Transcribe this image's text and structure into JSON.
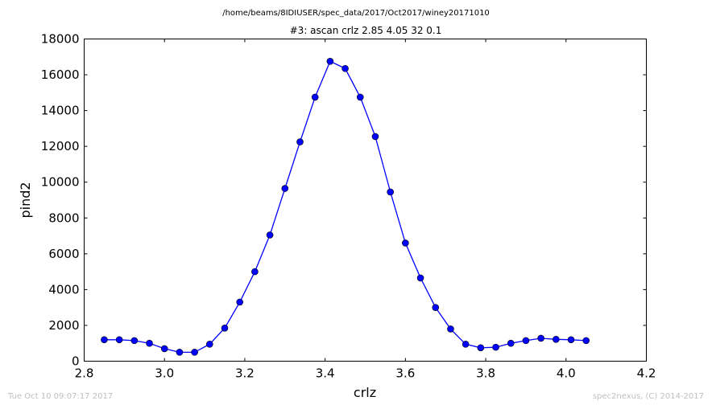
{
  "header": {
    "path": "/home/beams/8IDIUSER/spec_data/2017/Oct2017/winey20171010"
  },
  "footer": {
    "timestamp": "Tue Oct 10 09:07:17 2017",
    "credit": "spec2nexus, (C) 2014-2017"
  },
  "chart_data": {
    "type": "line",
    "title": "#3: ascan  crlz 2.85 4.05  32 0.1",
    "xlabel": "crlz",
    "ylabel": "pind2",
    "xlim": [
      2.8,
      4.2
    ],
    "ylim": [
      0,
      18000
    ],
    "xticks": [
      2.8,
      3.0,
      3.2,
      3.4,
      3.6,
      3.8,
      4.0,
      4.2
    ],
    "xtick_labels": [
      "2.8",
      "3.0",
      "3.2",
      "3.4",
      "3.6",
      "3.8",
      "4.0",
      "4.2"
    ],
    "yticks": [
      0,
      2000,
      4000,
      6000,
      8000,
      10000,
      12000,
      14000,
      16000,
      18000
    ],
    "ytick_labels": [
      "0",
      "2000",
      "4000",
      "6000",
      "8000",
      "10000",
      "12000",
      "14000",
      "16000",
      "18000"
    ],
    "grid": false,
    "marker": "circle",
    "series_color": "#0000ff",
    "x": [
      2.85,
      2.8875,
      2.925,
      2.9625,
      3.0,
      3.0375,
      3.075,
      3.1125,
      3.15,
      3.1875,
      3.225,
      3.2625,
      3.3,
      3.3375,
      3.375,
      3.4125,
      3.45,
      3.4875,
      3.525,
      3.5625,
      3.6,
      3.6375,
      3.675,
      3.7125,
      3.75,
      3.7875,
      3.825,
      3.8625,
      3.9,
      3.9375,
      3.975,
      4.0125,
      4.05
    ],
    "y": [
      1200,
      1200,
      1150,
      1000,
      700,
      500,
      500,
      950,
      1850,
      3300,
      5000,
      7050,
      9650,
      12250,
      14750,
      16750,
      16350,
      14750,
      12550,
      9450,
      6600,
      4650,
      3000,
      1800,
      950,
      750,
      780,
      1000,
      1150,
      1280,
      1220,
      1200,
      1150
    ]
  }
}
